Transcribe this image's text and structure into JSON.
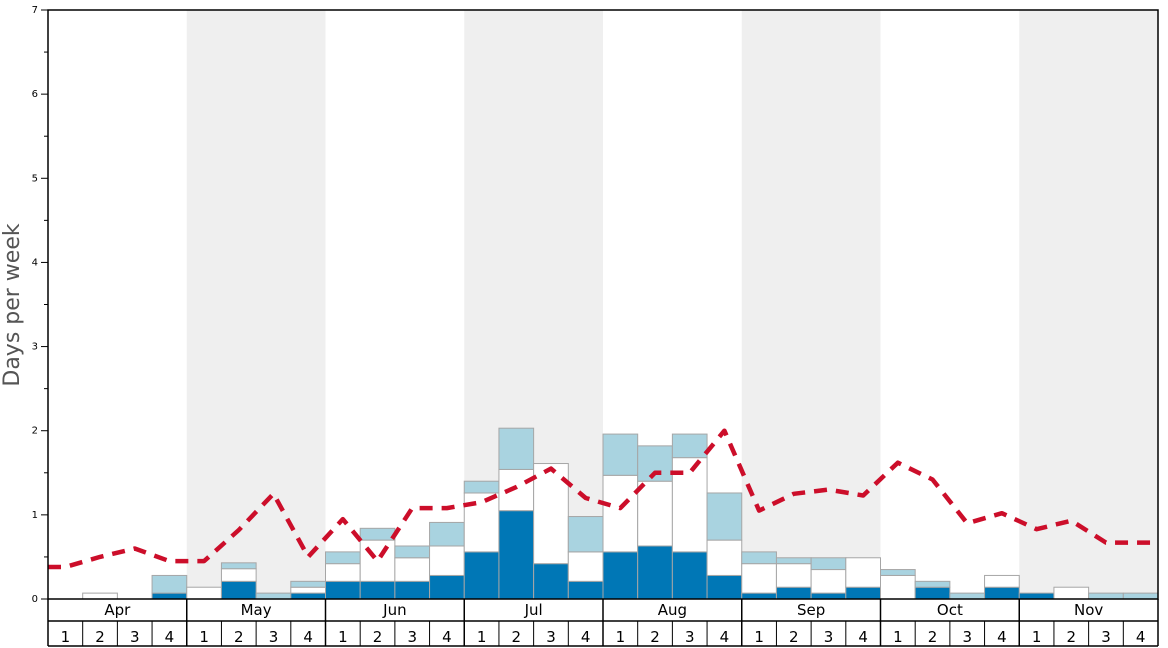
{
  "chart_data": {
    "type": "bar",
    "ylabel": "Days per week",
    "ylim": [
      0,
      7
    ],
    "yticks": [
      "0",
      "1",
      "2",
      "3",
      "4",
      "5",
      "6",
      "7"
    ],
    "months": [
      "Apr",
      "May",
      "Jun",
      "Jul",
      "Aug",
      "Sep",
      "Oct",
      "Nov"
    ],
    "weeks": [
      "1",
      "2",
      "3",
      "4"
    ],
    "colors": {
      "dark": "#0077b6",
      "white": "#ffffff",
      "light": "#a9d3e0",
      "line": "#cc0e2a",
      "band": "#efefef",
      "bar_border": "#a6a6a6"
    },
    "series": [
      {
        "values": [
          0,
          0,
          0,
          0.07,
          0,
          0.21,
          0,
          0.07,
          0.21,
          0.21,
          0.21,
          0.28,
          0.56,
          1.05,
          0.42,
          0.21,
          0.56,
          0.63,
          0.56,
          0.28,
          0.07,
          0.14,
          0.07,
          0.14,
          0,
          0.14,
          0,
          0.14,
          0.07,
          0,
          0,
          0
        ]
      },
      {
        "values": [
          0,
          0.07,
          0,
          0,
          0.14,
          0.15,
          0,
          0.07,
          0.21,
          0.49,
          0.28,
          0.35,
          0.7,
          0.49,
          1.19,
          0.35,
          0.91,
          0.77,
          1.12,
          0.42,
          0.35,
          0.28,
          0.28,
          0.35,
          0.28,
          0,
          0,
          0.14,
          0,
          0.14,
          0,
          0
        ]
      },
      {
        "values": [
          0,
          0,
          0,
          0.21,
          0,
          0.07,
          0.07,
          0.07,
          0.14,
          0.14,
          0.14,
          0.28,
          0.14,
          0.49,
          0,
          0.42,
          0.49,
          0.42,
          0.28,
          0.56,
          0.14,
          0.07,
          0.14,
          0,
          0.07,
          0.07,
          0.07,
          0,
          0,
          0,
          0.07,
          0.07
        ]
      },
      {
        "type": "line",
        "values": [
          0.38,
          0.5,
          0.6,
          0.45,
          0.45,
          0.82,
          1.25,
          0.5,
          0.95,
          0.45,
          1.08,
          1.08,
          1.15,
          1.33,
          1.55,
          1.2,
          1.08,
          1.5,
          1.5,
          2.0,
          1.05,
          1.25,
          1.3,
          1.23,
          1.62,
          1.42,
          0.9,
          1.02,
          0.83,
          0.93,
          0.67,
          0.67
        ]
      }
    ]
  }
}
